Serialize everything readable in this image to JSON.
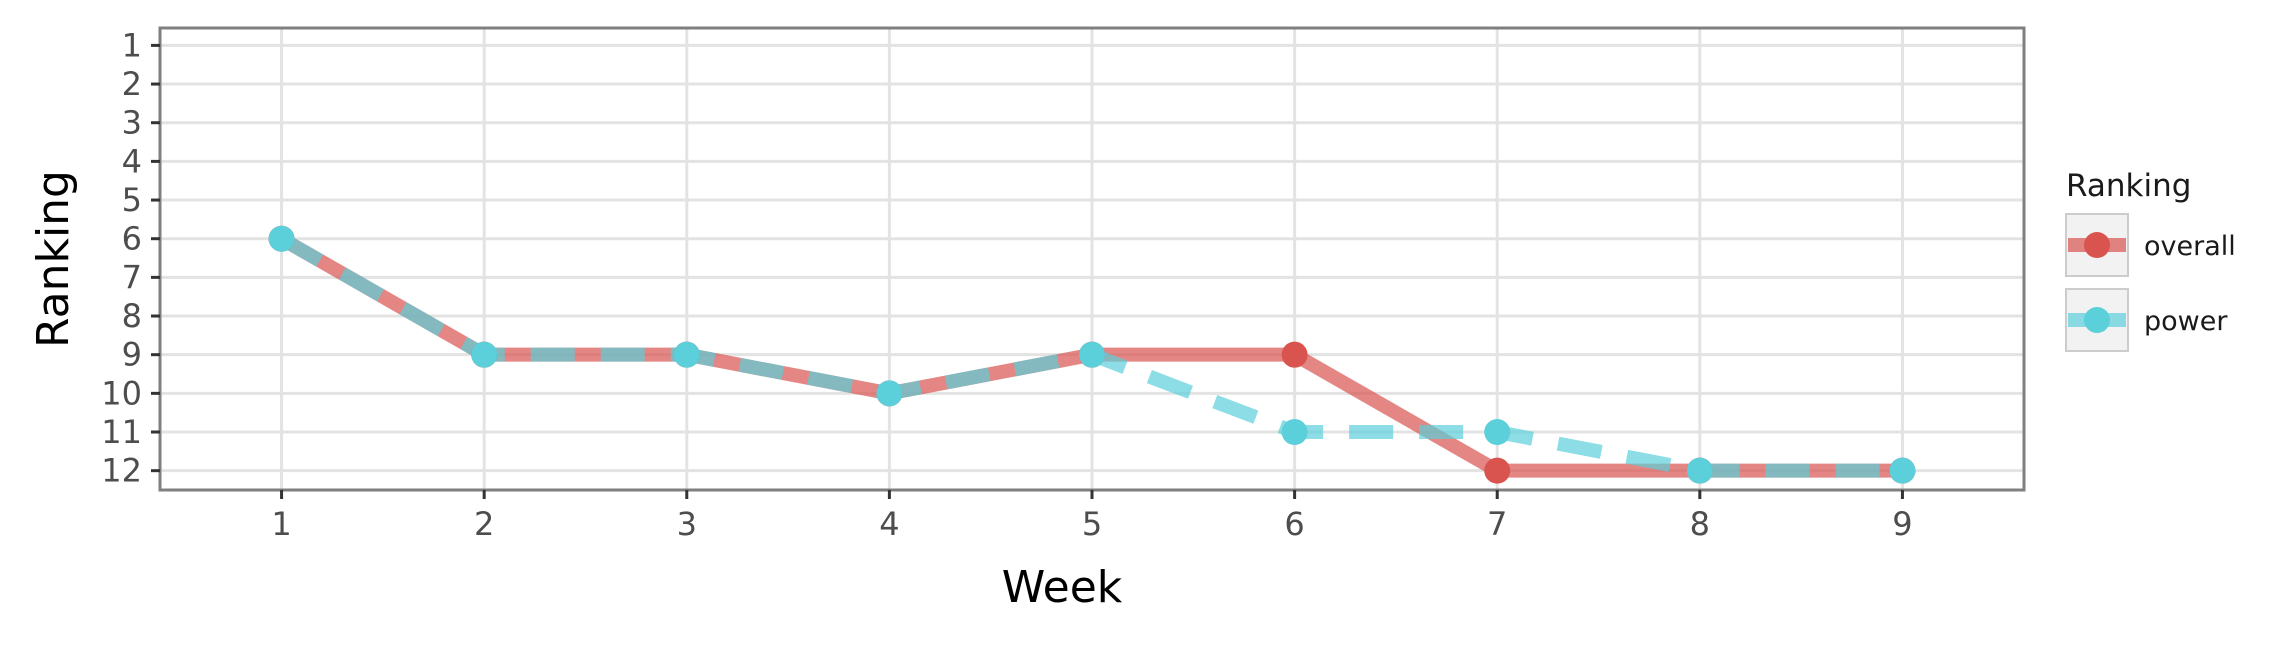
{
  "chart_data": {
    "type": "line",
    "xlabel": "Week",
    "ylabel": "Ranking",
    "x": [
      1,
      2,
      3,
      4,
      5,
      6,
      7,
      8,
      9
    ],
    "xlim": [
      0.4,
      9.6
    ],
    "ylim": [
      12.5,
      0.55
    ],
    "y_reversed": true,
    "y_ticks": [
      1,
      2,
      3,
      4,
      5,
      6,
      7,
      8,
      9,
      10,
      11,
      12
    ],
    "grid": true,
    "legend": {
      "title": "Ranking",
      "position": "right"
    },
    "series": [
      {
        "name": "overall",
        "color": "#D9534F",
        "line_style": "solid",
        "values": [
          6,
          9,
          9,
          10,
          9,
          9,
          12,
          12,
          12
        ]
      },
      {
        "name": "power",
        "color": "#5BCFDA",
        "line_style": "dashed",
        "values": [
          6,
          9,
          9,
          10,
          9,
          11,
          11,
          12,
          12
        ]
      }
    ]
  }
}
